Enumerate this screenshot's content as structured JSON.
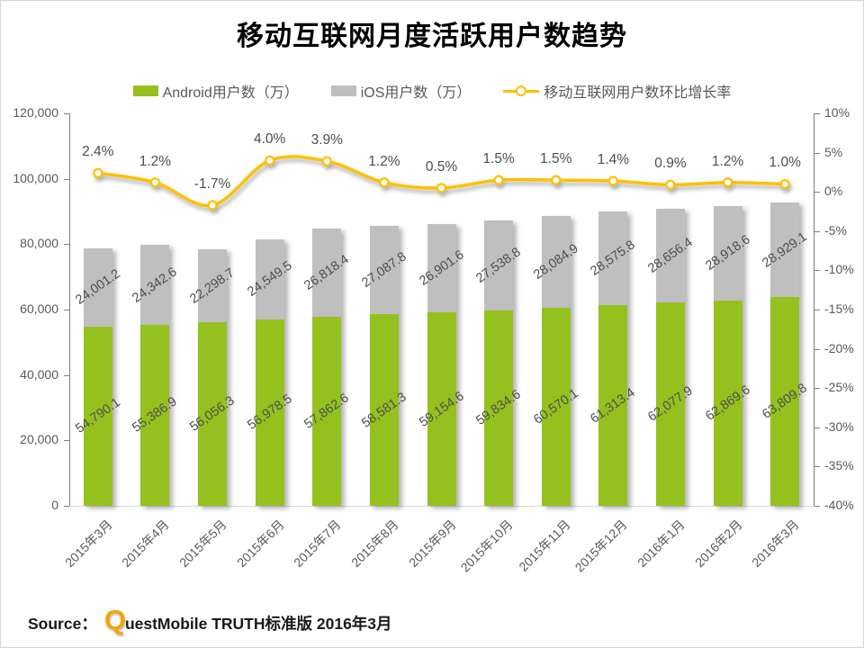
{
  "title": "移动互联网月度活跃用户数趋势",
  "legend": [
    {
      "label": "Android用户数（万）",
      "type": "swatch",
      "color": "#95C11F"
    },
    {
      "label": "iOS用户数（万）",
      "type": "swatch",
      "color": "#BFBFBF"
    },
    {
      "label": "移动互联网用户数环比增长率",
      "type": "line-marker",
      "color": "#FFC000"
    }
  ],
  "source": {
    "prefix": "Source：",
    "logo_letter": "Q",
    "rest": "uestMobile TRUTH标准版 2016年3月"
  },
  "colors": {
    "android_green": "#95C11F",
    "ios_gray": "#BFBFBF",
    "line_gold": "#FFC000",
    "axis_line": "#7F7F7F",
    "bottom_line": "#D9D9D9",
    "label_gray": "#4D4D4D",
    "tick_gray": "#595959",
    "logo_gold": "#F2A50C",
    "title_black": "#000000"
  },
  "chart_data": {
    "type": "bar",
    "subtype": "stacked-bars-with-growth-line",
    "title": "移动互联网月度活跃用户数趋势",
    "grid": "off",
    "legend_position": "top",
    "categories": [
      "2015年3月",
      "2015年4月",
      "2015年5月",
      "2015年6月",
      "2015年7月",
      "2015年8月",
      "2015年9月",
      "2015年10月",
      "2015年11月",
      "2015年12月",
      "2016年1月",
      "2016年2月",
      "2016年3月"
    ],
    "series": [
      {
        "name": "Android用户数（万）",
        "type": "bar",
        "color": "#95C11F",
        "values": [
          54790.1,
          55386.9,
          56056.3,
          56978.5,
          57862.6,
          58581.3,
          59154.6,
          59834.6,
          60570.1,
          61313.4,
          62077.9,
          62869.6,
          63809.8
        ]
      },
      {
        "name": "iOS用户数（万）",
        "type": "bar",
        "color": "#BFBFBF",
        "values": [
          24001.2,
          24342.6,
          22298.7,
          24549.5,
          26818.4,
          27087.8,
          26901.6,
          27538.8,
          28084.9,
          28575.8,
          28656.4,
          28918.6,
          28929.1
        ]
      },
      {
        "name": "移动互联网用户数环比增长率",
        "type": "line",
        "axis": "right",
        "color": "#FFC000",
        "values_pct": [
          2.4,
          1.2,
          -1.7,
          4.0,
          3.9,
          1.2,
          0.5,
          1.5,
          1.5,
          1.4,
          0.9,
          1.2,
          1.0
        ]
      }
    ],
    "left_axis": {
      "min": 0,
      "max": 120000,
      "step": 20000,
      "ticks": [
        "120,000",
        "100,000",
        "80,000",
        "60,000",
        "40,000",
        "20,000",
        "0"
      ]
    },
    "right_axis": {
      "min": -40,
      "max": 10,
      "step": 5,
      "ticks": [
        "10%",
        "5%",
        "0%",
        "-5%",
        "-10%",
        "-15%",
        "-20%",
        "-25%",
        "-30%",
        "-35%",
        "-40%"
      ]
    }
  }
}
